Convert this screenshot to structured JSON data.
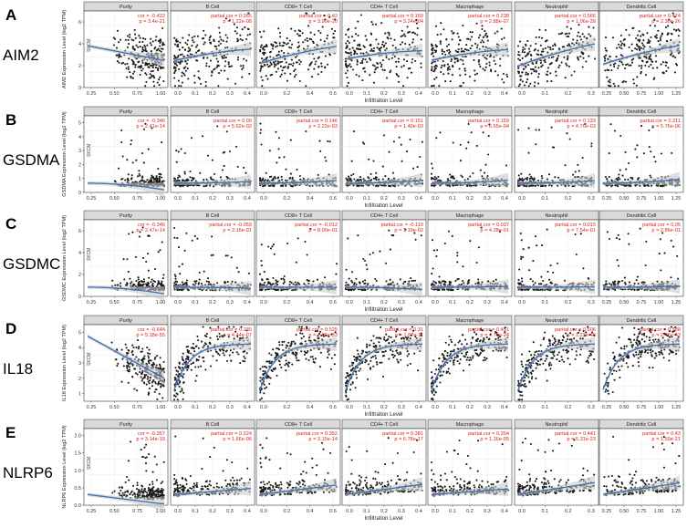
{
  "columns": [
    "Purity",
    "B Cell",
    "CD8+ T Cell",
    "CD4+ T Cell",
    "Macrophage",
    "Neutrophil",
    "Dendritic Cell"
  ],
  "x_axis_label": "Infiltration Level",
  "side_label": "SKCM",
  "dot_color": "#1a1a1a",
  "line_color": "#3b6fb6",
  "stat_color": "#e0201b",
  "band_color": "#c9c9c9",
  "x_ticks": [
    [
      "0.25",
      "0.50",
      "0.75",
      "1.00"
    ],
    [
      "0.0",
      "0.1",
      "0.2",
      "0.3",
      "0.4"
    ],
    [
      "0.0",
      "0.2",
      "0.4",
      "0.6"
    ],
    [
      "0.0",
      "0.1",
      "0.2",
      "0.3",
      "0.4"
    ],
    [
      "0.0",
      "0.1",
      "0.2",
      "0.3",
      "0.4"
    ],
    [
      "0.0",
      "0.1",
      "0.2",
      "0.3"
    ],
    [
      "0.25",
      "0.50",
      "0.75",
      "1.00",
      "1.25"
    ]
  ],
  "chart_data": [
    {
      "type": "scatter",
      "letter": "A",
      "gene": "AIM2",
      "ylabel": "AIM2 Expression Level (log2 TPM)",
      "y_ticks": [
        "0",
        "2",
        "4",
        "6"
      ],
      "ylim": [
        0,
        7
      ],
      "stats": [
        {
          "cor_label": "cor",
          "cor": "-0.422",
          "p": "3.4e-21"
        },
        {
          "cor_label": "partial.cor",
          "cor": "0.265",
          "p": "1.22e-08"
        },
        {
          "cor_label": "partial.cor",
          "cor": "0.42",
          "p": "3.90e-20"
        },
        {
          "cor_label": "partial.cor",
          "cor": "0.169",
          "p": "3.24e-04"
        },
        {
          "cor_label": "partial.cor",
          "cor": "0.238",
          "p": "2.88e-07"
        },
        {
          "cor_label": "partial.cor",
          "cor": "0.566",
          "p": "1.06e-39"
        },
        {
          "cor_label": "partial.cor",
          "cor": "0.474",
          "p": "2.30e-26"
        }
      ]
    },
    {
      "type": "scatter",
      "letter": "B",
      "gene": "GSDMA",
      "ylabel": "GSDMA Expression Level (log2 TPM)",
      "y_ticks": [
        "0",
        "1",
        "2",
        "3",
        "4",
        "5"
      ],
      "ylim": [
        0,
        5.5
      ],
      "stats": [
        {
          "cor_label": "cor",
          "cor": "-0.346",
          "p": "2.41e-14"
        },
        {
          "cor_label": "partial.cor",
          "cor": "0.09",
          "p": "5.62e-02"
        },
        {
          "cor_label": "partial.cor",
          "cor": "0.146",
          "p": "2.22e-03"
        },
        {
          "cor_label": "partial.cor",
          "cor": "0.151",
          "p": "1.40e-03"
        },
        {
          "cor_label": "partial.cor",
          "cor": "0.159",
          "p": "6.65e-04"
        },
        {
          "cor_label": "partial.cor",
          "cor": "0.133",
          "p": "4.76e-03"
        },
        {
          "cor_label": "partial.cor",
          "cor": "0.211",
          "p": "5.76e-06"
        }
      ]
    },
    {
      "type": "scatter",
      "letter": "C",
      "gene": "GSDMC",
      "ylabel": "GSDMC Expression Level (log2 TPM)",
      "y_ticks": [
        "0",
        "2",
        "4",
        "6"
      ],
      "ylim": [
        0,
        7
      ],
      "stats": [
        {
          "cor_label": "cor",
          "cor": "-0.346",
          "p": "2.47e-14"
        },
        {
          "cor_label": "partial.cor",
          "cor": "-0.059",
          "p": "2.15e-01"
        },
        {
          "cor_label": "partial.cor",
          "cor": "-0.012",
          "p": "8.00e-01"
        },
        {
          "cor_label": "partial.cor",
          "cor": "-0.119",
          "p": "1.19e-02"
        },
        {
          "cor_label": "partial.cor",
          "cor": "0.037",
          "p": "4.28e-01"
        },
        {
          "cor_label": "partial.cor",
          "cor": "0.015",
          "p": "7.54e-01"
        },
        {
          "cor_label": "partial.cor",
          "cor": "0.05",
          "p": "2.86e-01"
        }
      ]
    },
    {
      "type": "scatter",
      "letter": "D",
      "gene": "IL18",
      "ylabel": "IL18 Expression Level (log2 TPM)",
      "y_ticks": [
        "1",
        "2",
        "3",
        "4",
        "5"
      ],
      "ylim": [
        0.5,
        5.5
      ],
      "stats": [
        {
          "cor_label": "cor",
          "cor": "-0.644",
          "p": "5.18e-55"
        },
        {
          "cor_label": "partial.cor",
          "cor": "0.235",
          "p": "4.44e-07"
        },
        {
          "cor_label": "partial.cor",
          "cor": "0.525",
          "p": "2.66e-33"
        },
        {
          "cor_label": "partial.cor",
          "cor": "0.31",
          "p": "1.87e-11"
        },
        {
          "cor_label": "partial.cor",
          "cor": "0.451",
          "p": "4.70e-24"
        },
        {
          "cor_label": "partial.cor",
          "cor": "0.606",
          "p": "1.22e-46"
        },
        {
          "cor_label": "partial.cor",
          "cor": "0.588",
          "p": "2.46e-43"
        }
      ]
    },
    {
      "type": "scatter",
      "letter": "E",
      "gene": "NLRP6",
      "ylabel": "NLRP6 Expression Level (log2 TPM)",
      "y_ticks": [
        "0.0",
        "0.5",
        "1.0",
        "1.5",
        "2.0"
      ],
      "ylim": [
        0,
        2.2
      ],
      "stats": [
        {
          "cor_label": "cor",
          "cor": "-0.357",
          "p": "3.14e-15"
        },
        {
          "cor_label": "partial.cor",
          "cor": "0.224",
          "p": "1.66e-06"
        },
        {
          "cor_label": "partial.cor",
          "cor": "0.352",
          "p": "3.15e-14"
        },
        {
          "cor_label": "partial.cor",
          "cor": "0.381",
          "p": "6.78e-17"
        },
        {
          "cor_label": "partial.cor",
          "cor": "0.204",
          "p": "1.16e-05"
        },
        {
          "cor_label": "partial.cor",
          "cor": "0.441",
          "p": "5.31e-23"
        },
        {
          "cor_label": "partial.cor",
          "cor": "0.43",
          "p": "1.59e-21"
        }
      ]
    }
  ]
}
